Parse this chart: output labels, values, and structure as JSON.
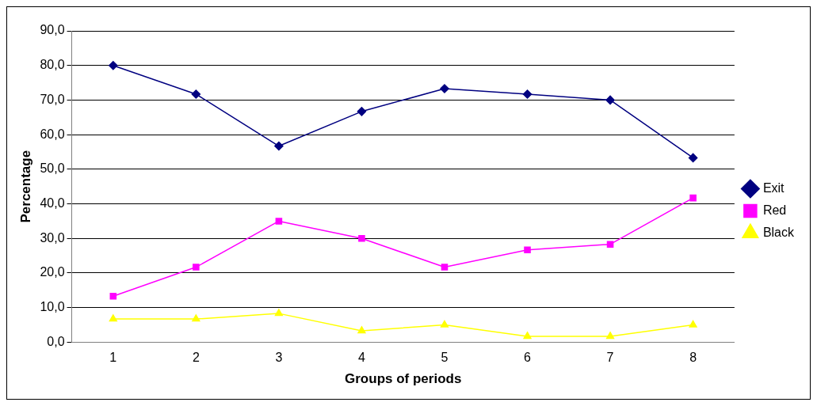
{
  "chart_data": {
    "type": "line",
    "xlabel": "Groups of periods",
    "ylabel": "Percentage",
    "categories": [
      "1",
      "2",
      "3",
      "4",
      "5",
      "6",
      "7",
      "8"
    ],
    "series": [
      {
        "name": "Exit",
        "color": "#000080",
        "marker": "diamond",
        "values": [
          80.0,
          71.7,
          56.7,
          66.7,
          73.3,
          71.7,
          70.0,
          53.3
        ]
      },
      {
        "name": "Red",
        "color": "#ff00ff",
        "marker": "square",
        "values": [
          13.3,
          21.7,
          35.0,
          30.0,
          21.7,
          26.7,
          28.3,
          41.7
        ]
      },
      {
        "name": "Black",
        "color": "#ffff00",
        "marker": "triangle",
        "values": [
          6.7,
          6.7,
          8.3,
          3.3,
          5.0,
          1.7,
          1.7,
          5.0
        ]
      }
    ],
    "ylim": [
      0,
      90
    ],
    "yticks": [
      {
        "value": 0,
        "label": "0,0"
      },
      {
        "value": 10,
        "label": "10,0"
      },
      {
        "value": 20,
        "label": "20,0"
      },
      {
        "value": 30,
        "label": "30,0"
      },
      {
        "value": 40,
        "label": "40,0"
      },
      {
        "value": 50,
        "label": "50,0"
      },
      {
        "value": 60,
        "label": "60,0"
      },
      {
        "value": 70,
        "label": "70,0"
      },
      {
        "value": 80,
        "label": "80,0"
      },
      {
        "value": 90,
        "label": "90,0"
      }
    ],
    "grid": "y",
    "legend": "right"
  }
}
